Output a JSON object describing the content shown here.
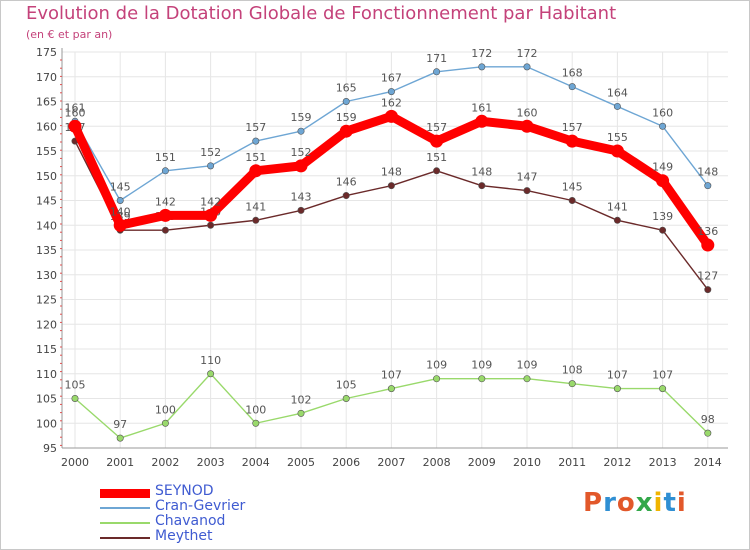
{
  "header": {
    "title": "Evolution de la Dotation Globale de Fonctionnement par Habitant",
    "subtitle": "(en € et par an)"
  },
  "logo": {
    "text": "Proxiti",
    "colors": [
      "#e2582a",
      "#2f8fd3",
      "#e2582a",
      "#33a84a",
      "#f0b400",
      "#2f8fd3",
      "#e2582a"
    ]
  },
  "chart_data": {
    "type": "line",
    "x": [
      "2000",
      "2001",
      "2002",
      "2003",
      "2004",
      "2005",
      "2006",
      "2007",
      "2008",
      "2009",
      "2010",
      "2011",
      "2012",
      "2013",
      "2014"
    ],
    "ylim": [
      95,
      175
    ],
    "yticks": [
      95,
      100,
      105,
      110,
      115,
      120,
      125,
      130,
      135,
      140,
      145,
      150,
      155,
      160,
      165,
      170,
      175
    ],
    "grid": true,
    "legend_position": "bottom-left",
    "series": [
      {
        "name": "SEYNOD",
        "color": "#ff0000",
        "values": [
          160,
          140,
          142,
          142,
          151,
          152,
          159,
          162,
          157,
          161,
          160,
          157,
          155,
          149,
          136
        ]
      },
      {
        "name": "Cran-Gevrier",
        "color": "#6ea6d4",
        "values": [
          161,
          145,
          151,
          152,
          157,
          159,
          165,
          167,
          171,
          172,
          172,
          168,
          164,
          160,
          148
        ]
      },
      {
        "name": "Chavanod",
        "color": "#99d96b",
        "values": [
          105,
          97,
          100,
          110,
          100,
          102,
          105,
          107,
          109,
          109,
          109,
          108,
          107,
          107,
          98
        ]
      },
      {
        "name": "Meythet",
        "color": "#6b2a2a",
        "values": [
          157,
          139,
          139,
          140,
          141,
          143,
          146,
          148,
          151,
          148,
          147,
          145,
          141,
          139,
          127
        ]
      }
    ]
  }
}
